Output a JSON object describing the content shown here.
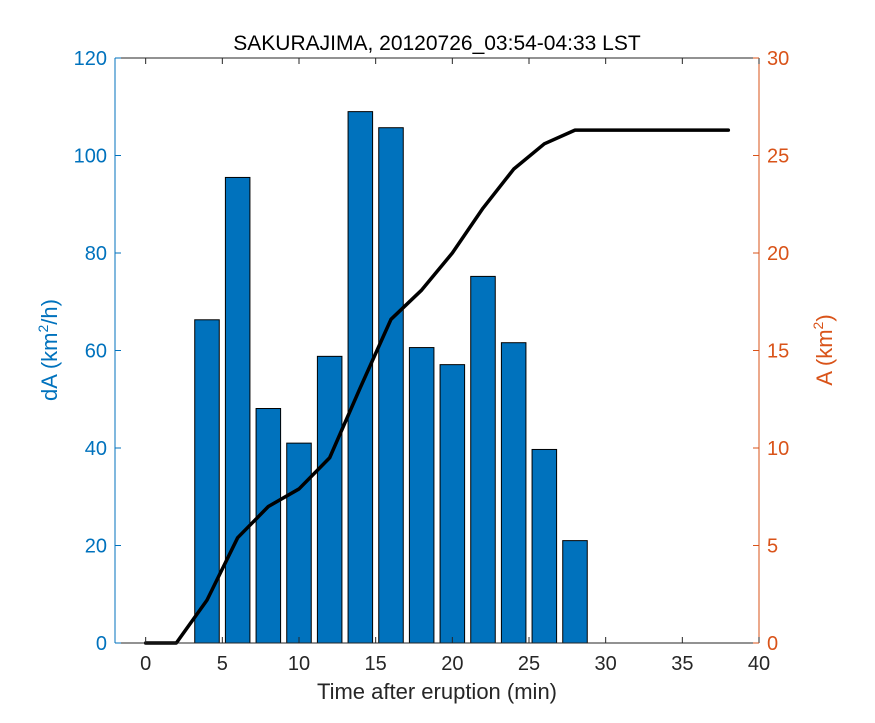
{
  "chart_data": {
    "type": "bar",
    "title": "SAKURAJIMA, 20120726_03:54-04:33 LST",
    "xlabel": "Time after eruption (min)",
    "xlim": [
      -2,
      40
    ],
    "xticks": [
      0,
      5,
      10,
      15,
      20,
      25,
      30,
      35,
      40
    ],
    "y_left": {
      "label_main": "dA (km",
      "label_sup": "2",
      "label_tail": "/h)",
      "lim": [
        0,
        120
      ],
      "ticks": [
        0,
        20,
        40,
        60,
        80,
        100,
        120
      ],
      "color": "#0072BD"
    },
    "y_right": {
      "label_main": "A (km",
      "label_sup": "2",
      "label_tail": ")",
      "lim": [
        0,
        30
      ],
      "ticks": [
        0,
        5,
        10,
        15,
        20,
        25,
        30
      ],
      "color": "#D95319"
    },
    "bars": {
      "axis": "left",
      "color": "#0072BD",
      "x": [
        4,
        6,
        8,
        10,
        12,
        14,
        16,
        18,
        20,
        22,
        24,
        26,
        28
      ],
      "values": [
        66.3,
        95.5,
        48.1,
        41.0,
        58.8,
        109.0,
        105.7,
        60.6,
        57.1,
        75.2,
        61.6,
        39.7,
        21.0
      ]
    },
    "line": {
      "axis": "right",
      "color": "#000000",
      "x": [
        0,
        2,
        4,
        6,
        8,
        10,
        12,
        14,
        16,
        18,
        20,
        22,
        24,
        26,
        28,
        30,
        32,
        34,
        36,
        38
      ],
      "values": [
        0,
        0,
        2.2,
        5.4,
        7.0,
        7.9,
        9.5,
        13.1,
        16.6,
        18.1,
        20.0,
        22.3,
        24.3,
        25.6,
        26.3,
        26.3,
        26.3,
        26.3,
        26.3,
        26.3
      ]
    },
    "grid": false,
    "legend": "none"
  }
}
